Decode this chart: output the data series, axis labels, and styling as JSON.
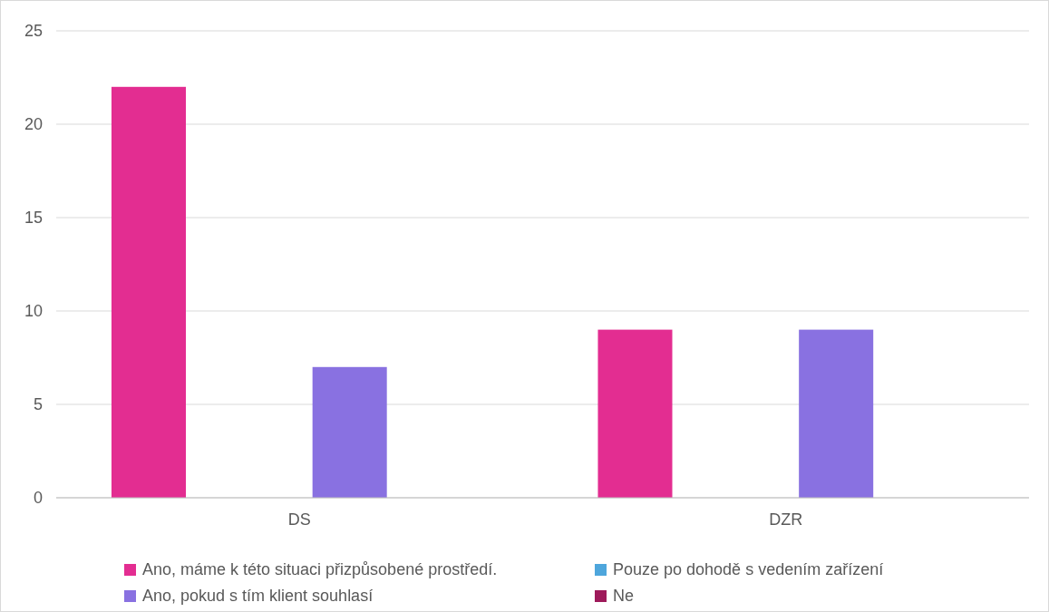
{
  "chart_data": {
    "type": "bar",
    "categories": [
      "DS",
      "DZR"
    ],
    "series": [
      {
        "name": "Ano, máme k této situaci přizpůsobené prostředí.",
        "color": "#e32d91",
        "values": [
          22,
          9
        ]
      },
      {
        "name": "Pouze po dohodě s vedením zařízení",
        "color": "#4ea6dc",
        "values": [
          0,
          0
        ]
      },
      {
        "name": "Ano, pokud s tím klient souhlasí",
        "color": "#8971e1",
        "values": [
          7,
          9
        ]
      },
      {
        "name": "Ne",
        "color": "#9e1a5a",
        "values": [
          0,
          0
        ]
      }
    ],
    "ylim": [
      0,
      25
    ],
    "yticks": [
      0,
      5,
      10,
      15,
      20,
      25
    ],
    "grid": "y",
    "legend": "bottom"
  }
}
